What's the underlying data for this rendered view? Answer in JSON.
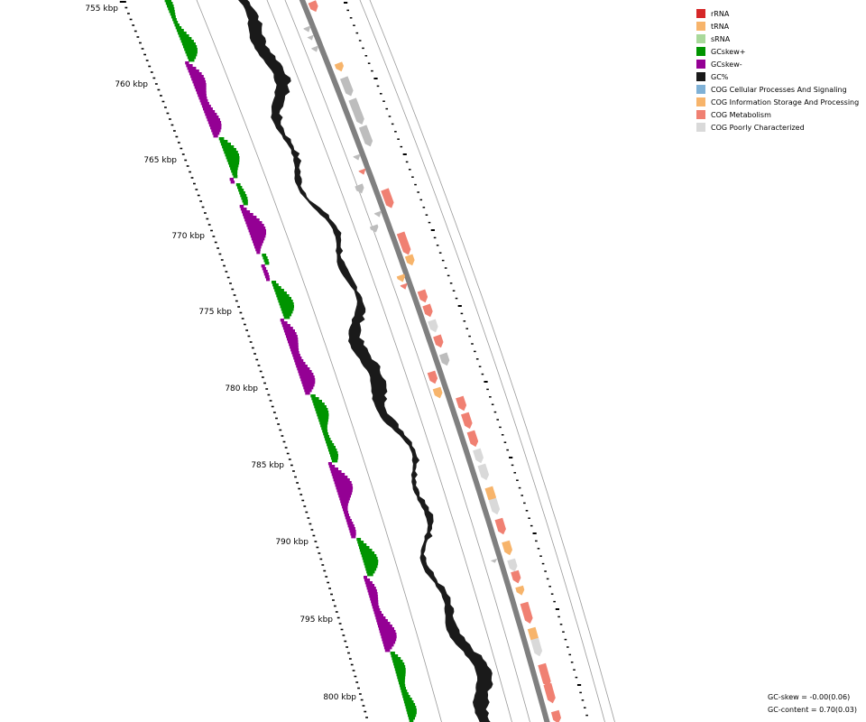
{
  "map": {
    "tick_labels": [
      "755 kbp",
      "760 kbp",
      "765 kbp",
      "770 kbp",
      "775 kbp",
      "780 kbp",
      "785 kbp",
      "790 kbp",
      "795 kbp",
      "800 kbp"
    ]
  },
  "legend": {
    "items": [
      {
        "label": "rRNA",
        "color": "#d62728"
      },
      {
        "label": "tRNA",
        "color": "#f7b46b"
      },
      {
        "label": "sRNA",
        "color": "#a9d99b"
      },
      {
        "label": "GCskew+",
        "color": "#009400"
      },
      {
        "label": "GCskew-",
        "color": "#940094"
      },
      {
        "label": "GC%",
        "color": "#1a1a1a"
      },
      {
        "label": "COG Cellular Processes And Signaling",
        "color": "#7fb1d6"
      },
      {
        "label": "COG Information Storage And Processing",
        "color": "#f7b46b"
      },
      {
        "label": "COG Metabolism",
        "color": "#f08072"
      },
      {
        "label": "COG Poorly Characterized",
        "color": "#d9d9d9"
      }
    ]
  },
  "stats": {
    "gc_skew": "GC-skew = -0.00(0.06)",
    "gc_content": "GC-content = 0.70(0.03)"
  },
  "colors": {
    "gc_percent": "#1a1a1a",
    "skew_pos": "#009400",
    "skew_neg": "#940094",
    "backbone": "#808080",
    "cog_metabolism": "#f08072",
    "cog_info": "#f7b46b",
    "cog_poor": "#d9d9d9",
    "cog_poor_dark": "#bdbdbd"
  }
}
